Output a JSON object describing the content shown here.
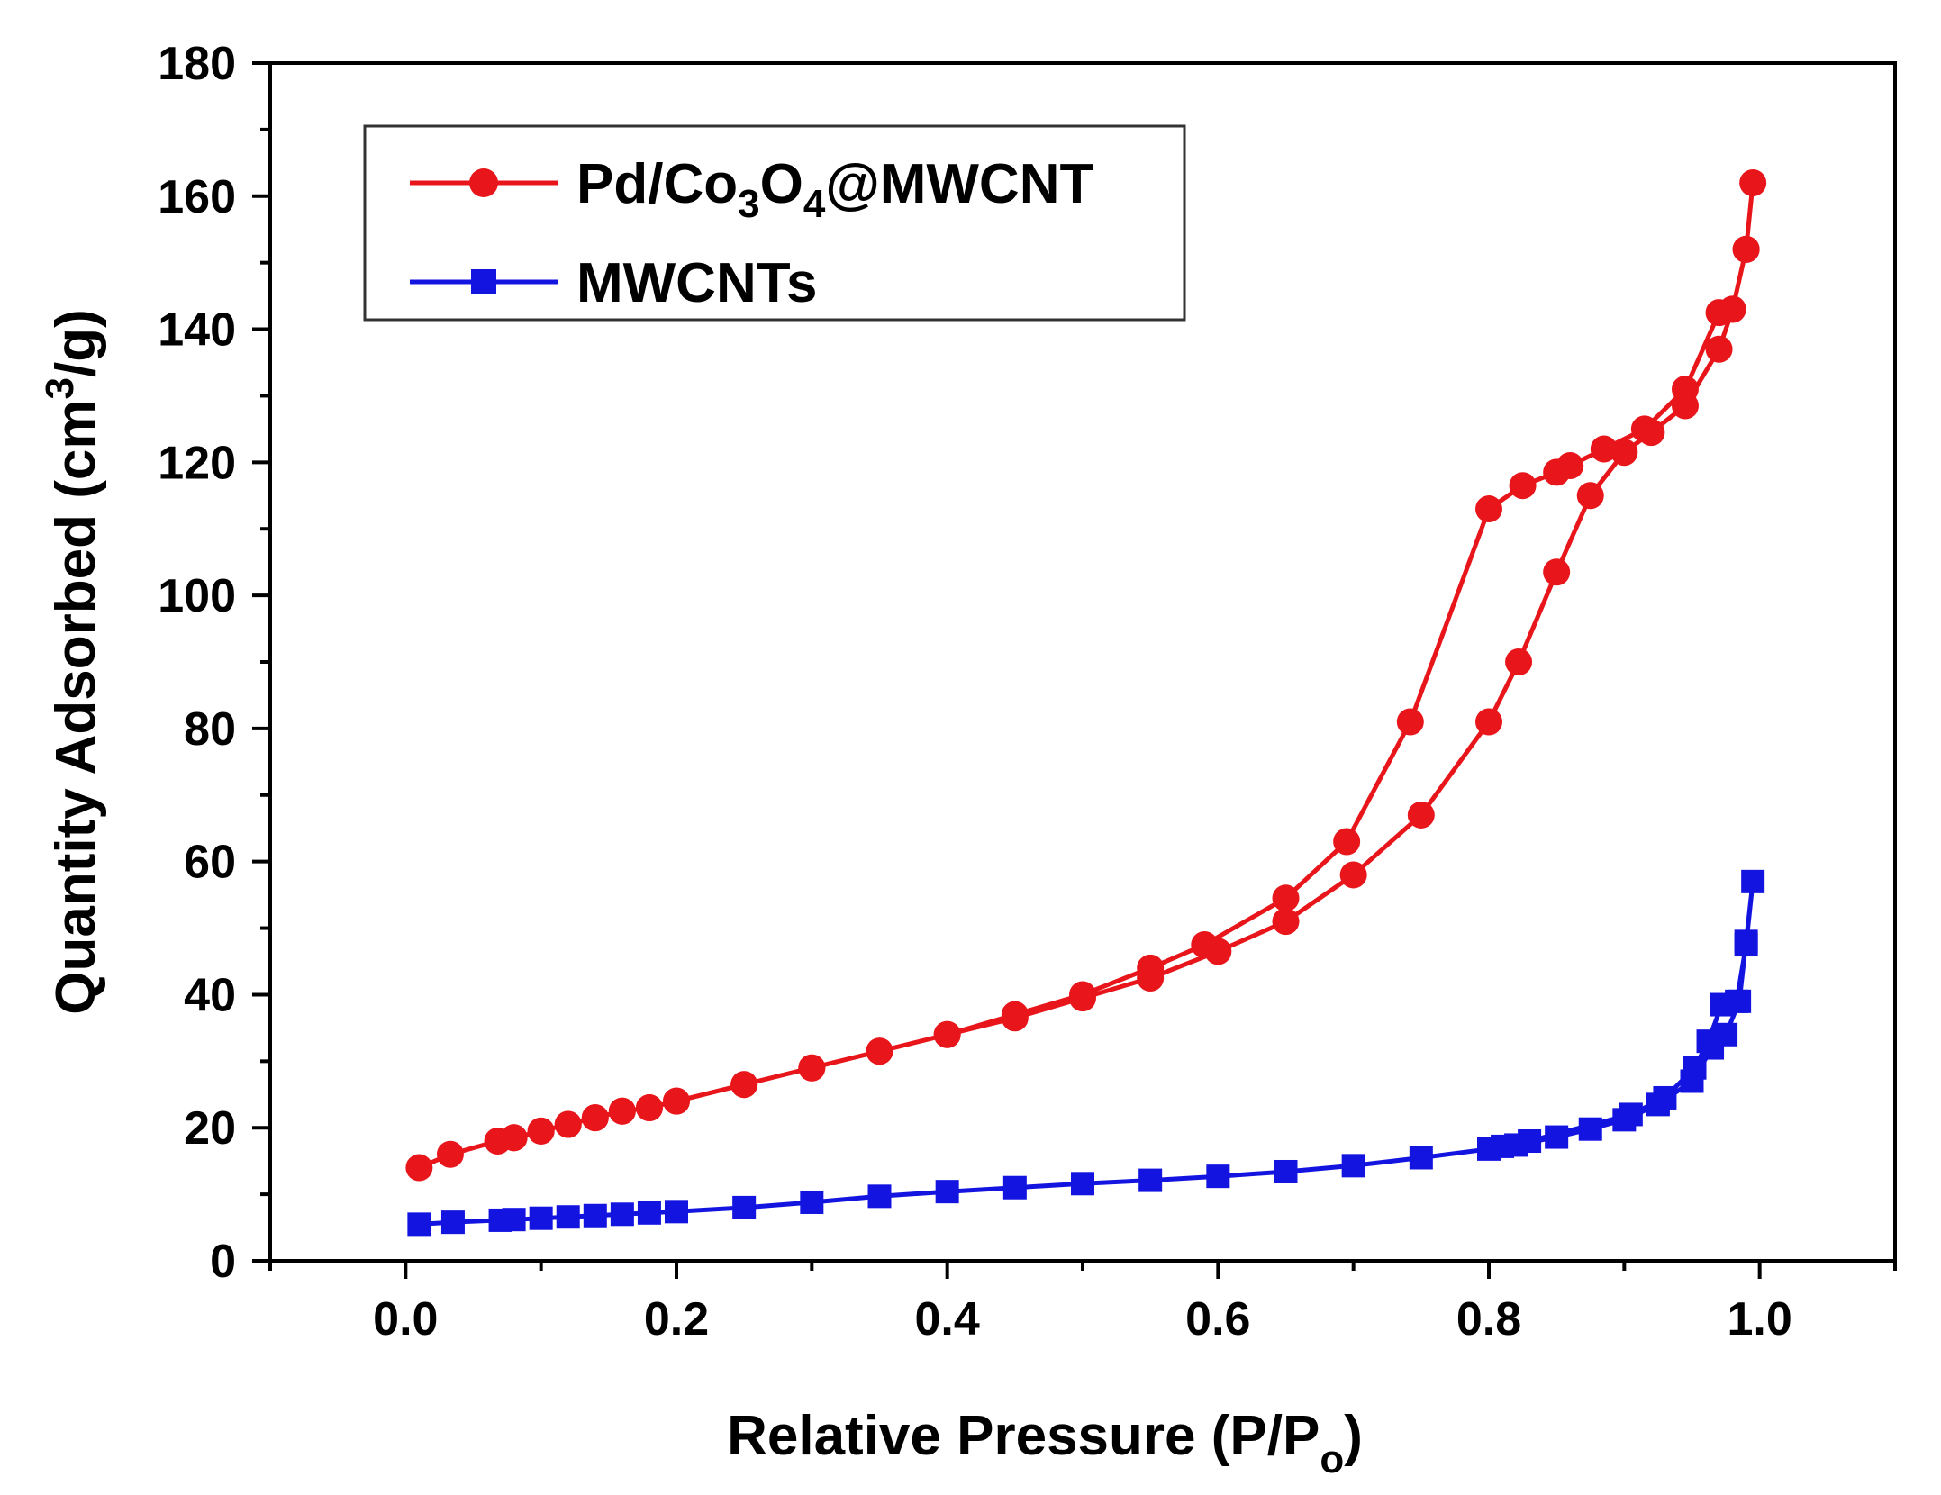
{
  "chart_data": {
    "type": "line",
    "title": "",
    "xlabel": "Relative Pressure (P/P",
    "xlabel_sub": "o",
    "xlabel_end": ")",
    "ylabel": "Quantity Adsorbed (cm",
    "ylabel_sup": "3",
    "ylabel_end": "/g)",
    "xlim": [
      -0.1,
      1.1
    ],
    "ylim": [
      0,
      180
    ],
    "xticks": [
      "0.0",
      "0.2",
      "0.4",
      "0.6",
      "0.8",
      "1.0"
    ],
    "yticks": [
      "0",
      "20",
      "40",
      "60",
      "80",
      "100",
      "120",
      "140",
      "160",
      "180"
    ],
    "xtick_values": [
      0.0,
      0.2,
      0.4,
      0.6,
      0.8,
      1.0
    ],
    "ytick_values": [
      0,
      20,
      40,
      60,
      80,
      100,
      120,
      140,
      160,
      180
    ],
    "grid": false,
    "legend_position": "top-left",
    "series": [
      {
        "name": "Pd/Co3O4@MWCNT",
        "legend": {
          "a": "Pd/Co",
          "sub1": "3",
          "b": "O",
          "sub2": "4",
          "c": "@MWCNT"
        },
        "color": "#e8161b",
        "marker": "circle",
        "x": [
          0.01,
          0.033,
          0.068,
          0.08,
          0.1,
          0.12,
          0.14,
          0.16,
          0.18,
          0.2,
          0.25,
          0.3,
          0.35,
          0.4,
          0.45,
          0.5,
          0.55,
          0.6,
          0.65,
          0.7,
          0.75,
          0.8,
          0.822,
          0.85,
          0.875,
          0.9,
          0.92,
          0.945,
          0.97,
          0.98,
          0.99,
          0.995,
          0.99,
          0.98,
          0.97,
          0.945,
          0.915,
          0.885,
          0.86,
          0.85,
          0.825,
          0.8,
          0.742,
          0.695,
          0.65,
          0.59,
          0.55,
          0.5,
          0.45,
          0.4,
          0.35,
          0.3,
          0.25,
          0.2,
          0.18,
          0.16,
          0.14,
          0.12,
          0.1,
          0.08
        ],
        "y": [
          14,
          16,
          18,
          18.5,
          19.5,
          20.5,
          21.5,
          22.5,
          23,
          24,
          26.5,
          29,
          31.5,
          34,
          36.5,
          39.5,
          42.5,
          46.5,
          51,
          58,
          67,
          81,
          90,
          103.5,
          115,
          121.5,
          124.5,
          128.5,
          137,
          143,
          152,
          162,
          152,
          143,
          142.5,
          131,
          125,
          122,
          119.5,
          118.5,
          116.5,
          113,
          81,
          63,
          54.5,
          47.5,
          44,
          40,
          37,
          34,
          31.5,
          29,
          26.5,
          24,
          23,
          22.5,
          21.5,
          20.5,
          19.5,
          18.5
        ]
      },
      {
        "name": "MWCNTs",
        "legend": {
          "a": "MWCNTs"
        },
        "color": "#1414e0",
        "marker": "square",
        "x": [
          0.01,
          0.035,
          0.07,
          0.08,
          0.1,
          0.12,
          0.14,
          0.16,
          0.18,
          0.2,
          0.25,
          0.3,
          0.35,
          0.4,
          0.45,
          0.5,
          0.55,
          0.6,
          0.65,
          0.7,
          0.75,
          0.8,
          0.82,
          0.85,
          0.875,
          0.9,
          0.925,
          0.95,
          0.965,
          0.975,
          0.985,
          0.99,
          0.995,
          0.99,
          0.983,
          0.972,
          0.962,
          0.952,
          0.93,
          0.905,
          0.83,
          0.81
        ],
        "y": [
          5.5,
          5.8,
          6.1,
          6.2,
          6.4,
          6.6,
          6.8,
          7,
          7.2,
          7.4,
          8,
          8.8,
          9.7,
          10.4,
          11,
          11.6,
          12.1,
          12.7,
          13.4,
          14.3,
          15.5,
          16.8,
          17.4,
          18.6,
          19.8,
          21.2,
          23.5,
          27,
          32,
          34,
          39,
          48,
          57,
          47.5,
          39,
          38.5,
          33,
          29,
          24.5,
          22,
          18,
          17.2
        ]
      }
    ]
  }
}
